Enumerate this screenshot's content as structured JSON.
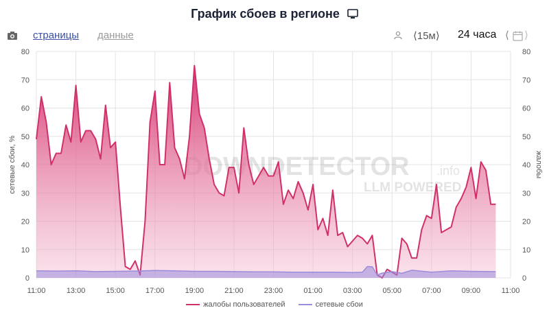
{
  "header": {
    "title": "График сбоев в регионе",
    "monitor_icon": "monitor-icon"
  },
  "toolbar": {
    "camera_icon": "camera-icon",
    "tab_pages": "страницы",
    "tab_data": "данные",
    "user_icon": "user-icon",
    "interval": "⟨15м⟩",
    "range": "24 часа",
    "nav_prev": "⟨",
    "calendar_icon": "calendar-icon",
    "nav_next": "⟩"
  },
  "watermark": {
    "brand": "DOWNDETECTOR",
    "suffix": ".info",
    "sub": "LLM POWERED"
  },
  "colors": {
    "complaints": "#d0306a",
    "outages": "#9b8bdc",
    "grid": "#e3e3e3"
  },
  "chart_data": {
    "type": "area",
    "ylabel_left": "сетевые сбои, %",
    "ylabel_right": "жалобы",
    "ylim": [
      0,
      80
    ],
    "yticks": [
      0,
      10,
      20,
      30,
      40,
      50,
      60,
      70,
      80
    ],
    "xlim_hours": [
      11.0,
      35.0
    ],
    "xtick_labels": [
      "11:00",
      "13:00",
      "15:00",
      "17:00",
      "19:00",
      "21:00",
      "23:00",
      "01:00",
      "03:00",
      "05:00",
      "07:00",
      "09:00",
      "11:00"
    ],
    "series": [
      {
        "name": "жалобы пользователей",
        "x": [
          11.0,
          11.25,
          11.5,
          11.75,
          12.0,
          12.25,
          12.5,
          12.75,
          13.0,
          13.25,
          13.5,
          13.75,
          14.0,
          14.25,
          14.5,
          14.75,
          15.0,
          15.25,
          15.5,
          15.75,
          16.0,
          16.25,
          16.5,
          16.75,
          17.0,
          17.25,
          17.5,
          17.75,
          18.0,
          18.25,
          18.5,
          18.75,
          19.0,
          19.25,
          19.5,
          19.75,
          20.0,
          20.25,
          20.5,
          20.75,
          21.0,
          21.25,
          21.5,
          21.75,
          22.0,
          22.25,
          22.5,
          22.75,
          23.0,
          23.25,
          23.5,
          23.75,
          24.0,
          24.25,
          24.5,
          24.75,
          25.0,
          25.25,
          25.5,
          25.75,
          26.0,
          26.25,
          26.5,
          26.75,
          27.0,
          27.25,
          27.5,
          27.75,
          28.0,
          28.25,
          28.5,
          28.75,
          29.0,
          29.25,
          29.5,
          29.75,
          30.0,
          30.25,
          30.5,
          30.75,
          31.0,
          31.25,
          31.5,
          31.75,
          32.0,
          32.25,
          32.5,
          32.75,
          33.0,
          33.25,
          33.5,
          33.75,
          34.0,
          34.25
        ],
        "y": [
          49,
          64,
          55,
          40,
          44,
          44,
          54,
          48,
          68,
          48,
          52,
          52,
          49,
          42,
          61,
          46,
          48,
          25,
          4,
          3,
          6,
          1,
          20,
          55,
          66,
          40,
          40,
          69,
          46,
          42,
          35,
          50,
          75,
          58,
          53,
          42,
          33,
          30,
          29,
          39,
          39,
          30,
          53,
          40,
          33,
          36,
          39,
          36,
          36,
          41,
          26,
          31,
          28,
          34,
          30,
          24,
          33,
          17,
          21,
          15,
          31,
          15,
          16,
          11,
          13,
          15,
          14,
          12,
          15,
          1,
          0,
          3,
          2,
          1,
          14,
          12,
          7,
          7,
          17,
          22,
          21,
          33,
          16,
          17,
          18,
          25,
          28,
          32,
          39,
          28,
          41,
          38,
          26,
          26
        ],
        "color": "#d0306a"
      },
      {
        "name": "сетевые сбои",
        "x": [
          11.0,
          12.0,
          13.0,
          14.0,
          15.0,
          16.0,
          17.0,
          18.0,
          19.0,
          20.0,
          21.0,
          22.0,
          23.0,
          24.0,
          25.0,
          26.0,
          27.0,
          27.5,
          27.75,
          28.0,
          28.25,
          28.5,
          29.0,
          29.5,
          30.0,
          31.0,
          32.0,
          33.0,
          34.0,
          34.25
        ],
        "y": [
          2.5,
          2.4,
          2.5,
          2.2,
          2.3,
          2.4,
          2.6,
          2.5,
          2.3,
          2.3,
          2.2,
          2.1,
          2.1,
          2.0,
          2.0,
          2.0,
          1.9,
          2.0,
          4.0,
          3.9,
          1.0,
          1.7,
          2.2,
          1.6,
          2.7,
          2.0,
          2.5,
          2.3,
          2.2,
          2.2
        ],
        "color": "#9b8bdc"
      }
    ]
  }
}
